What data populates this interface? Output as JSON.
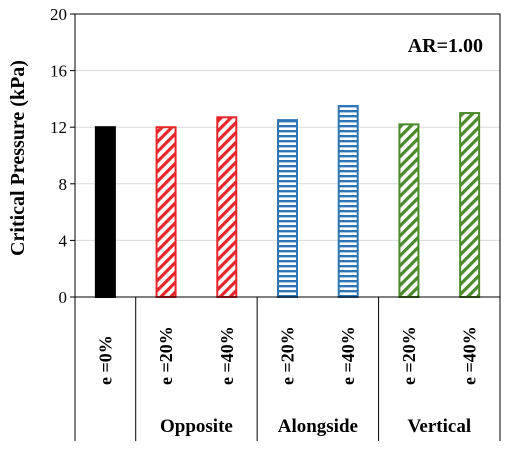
{
  "chart_data": {
    "type": "bar",
    "ylabel": "Critical Pressure (kPa)",
    "ylim": [
      0,
      20
    ],
    "yticks": [
      0,
      4,
      8,
      12,
      16,
      20
    ],
    "grid": true,
    "annotation": "AR=1.00",
    "categories": [
      "e =0%",
      "e =20%",
      "e =40%",
      "e =20%",
      "e =40%",
      "e =20%",
      "e =40%"
    ],
    "groups": [
      {
        "label": "",
        "span": [
          0,
          0
        ]
      },
      {
        "label": "Opposite",
        "span": [
          1,
          2
        ]
      },
      {
        "label": "Alongside",
        "span": [
          3,
          4
        ]
      },
      {
        "label": "Vertical",
        "span": [
          5,
          6
        ]
      }
    ],
    "values": [
      12.0,
      12.0,
      12.7,
      12.5,
      13.5,
      12.2,
      13.0
    ],
    "bar_styles": [
      {
        "color": "#000000",
        "pattern": "solid"
      },
      {
        "color": "#e8262a",
        "pattern": "diagonal"
      },
      {
        "color": "#e8262a",
        "pattern": "diagonal"
      },
      {
        "color": "#2e75b6",
        "pattern": "horizontal"
      },
      {
        "color": "#2e75b6",
        "pattern": "horizontal"
      },
      {
        "color": "#4a8a2a",
        "pattern": "diagonal"
      },
      {
        "color": "#4a8a2a",
        "pattern": "diagonal"
      }
    ]
  }
}
